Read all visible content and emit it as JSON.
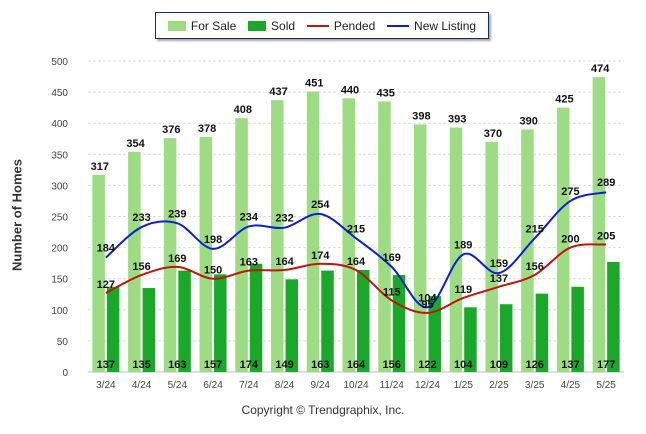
{
  "legend": {
    "for_sale": "For Sale",
    "sold": "Sold",
    "pended": "Pended",
    "new_listing": "New Listing"
  },
  "footer": "Copyright © Trendgraphix, Inc.",
  "colors": {
    "for_sale": "#9ddc82",
    "sold": "#1aa82a",
    "pended": "#c0140e",
    "new_listing": "#0a1fd6"
  },
  "chart_data": {
    "type": "bar",
    "title": "",
    "xlabel": "",
    "ylabel": "Number of Homes",
    "ylim": [
      0,
      500
    ],
    "yticks": [
      0,
      50,
      100,
      150,
      200,
      250,
      300,
      350,
      400,
      450,
      500
    ],
    "grid": true,
    "legend_position": "top-center",
    "categories": [
      "3/24",
      "4/24",
      "5/24",
      "6/24",
      "7/24",
      "8/24",
      "9/24",
      "10/24",
      "11/24",
      "12/24",
      "1/25",
      "2/25",
      "3/25",
      "4/25",
      "5/25"
    ],
    "series": [
      {
        "name": "For Sale",
        "type": "bar",
        "values": [
          317,
          354,
          376,
          378,
          408,
          437,
          451,
          440,
          435,
          398,
          393,
          370,
          390,
          425,
          474
        ]
      },
      {
        "name": "Sold",
        "type": "bar",
        "values": [
          137,
          135,
          163,
          157,
          174,
          149,
          163,
          164,
          156,
          122,
          104,
          109,
          126,
          137,
          177
        ]
      },
      {
        "name": "Pended",
        "type": "line",
        "values": [
          127,
          156,
          169,
          150,
          163,
          164,
          174,
          164,
          115,
          95,
          119,
          137,
          156,
          200,
          205
        ]
      },
      {
        "name": "New Listing",
        "type": "line",
        "values": [
          184,
          233,
          239,
          198,
          234,
          232,
          254,
          215,
          169,
          104,
          189,
          159,
          215,
          275,
          289
        ]
      }
    ]
  }
}
